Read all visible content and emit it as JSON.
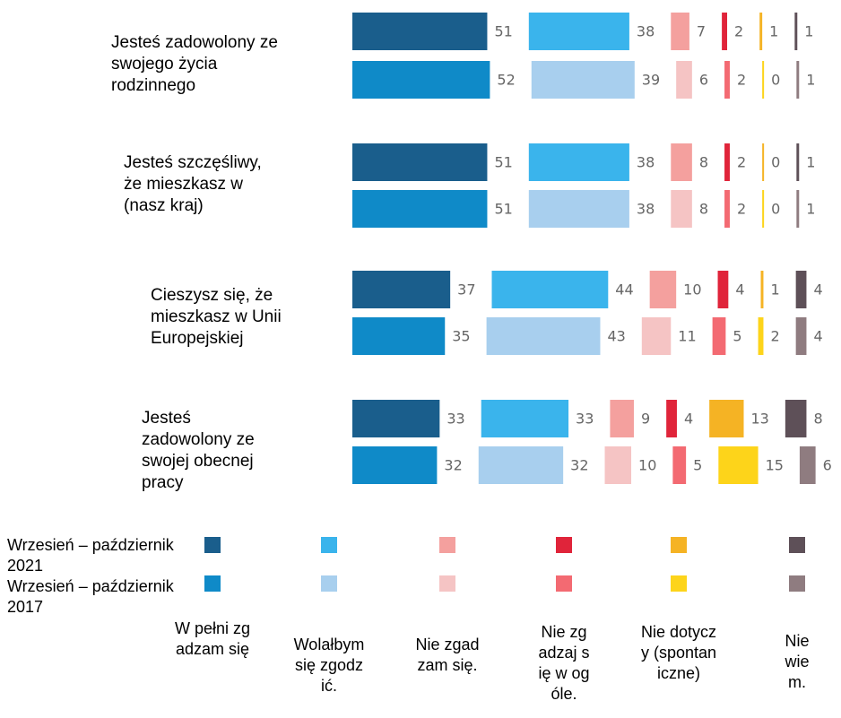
{
  "chart_data": {
    "type": "bar",
    "categories": [
      "Jesteś zadowolony ze swojego życia rodzinnego",
      "Jesteś szczęśliwy, że mieszkasz w (nasz kraj)",
      "Cieszysz się, że mieszkasz w Unii Europejskiej",
      "Jesteś zadowolony ze swojej obecnej pracy"
    ],
    "groups": [
      "Wrzesień – październik 2021",
      "Wrzesień – październik 2017"
    ],
    "series": [
      {
        "name": "W pełni zgadzam się",
        "colors": [
          "#1a5e8c",
          "#0f8ac8"
        ],
        "values": [
          [
            51,
            52
          ],
          [
            51,
            51
          ],
          [
            37,
            35
          ],
          [
            33,
            32
          ]
        ]
      },
      {
        "name": "Wolałbym się zgodzić.",
        "colors": [
          "#3ab4ec",
          "#a8cfee"
        ],
        "values": [
          [
            38,
            39
          ],
          [
            38,
            38
          ],
          [
            44,
            43
          ],
          [
            33,
            32
          ]
        ]
      },
      {
        "name": "Nie zgadzam się.",
        "colors": [
          "#f4a09e",
          "#f5c4c4"
        ],
        "values": [
          [
            7,
            6
          ],
          [
            8,
            8
          ],
          [
            10,
            11
          ],
          [
            9,
            10
          ]
        ]
      },
      {
        "name": "Nie zgadzaj się w ogóle.",
        "colors": [
          "#e0243a",
          "#f36a72"
        ],
        "values": [
          [
            2,
            2
          ],
          [
            2,
            2
          ],
          [
            4,
            5
          ],
          [
            4,
            5
          ]
        ]
      },
      {
        "name": "Nie dotyczy (spontaniczne)",
        "colors": [
          "#f5b324",
          "#fdd41a"
        ],
        "values": [
          [
            1,
            0
          ],
          [
            0,
            0
          ],
          [
            1,
            2
          ],
          [
            13,
            15
          ]
        ]
      },
      {
        "name": "Nie wiem.",
        "colors": [
          "#5e5058",
          "#8f7c80"
        ],
        "values": [
          [
            1,
            1
          ],
          [
            1,
            1
          ],
          [
            4,
            4
          ],
          [
            8,
            6
          ]
        ]
      }
    ]
  }
}
